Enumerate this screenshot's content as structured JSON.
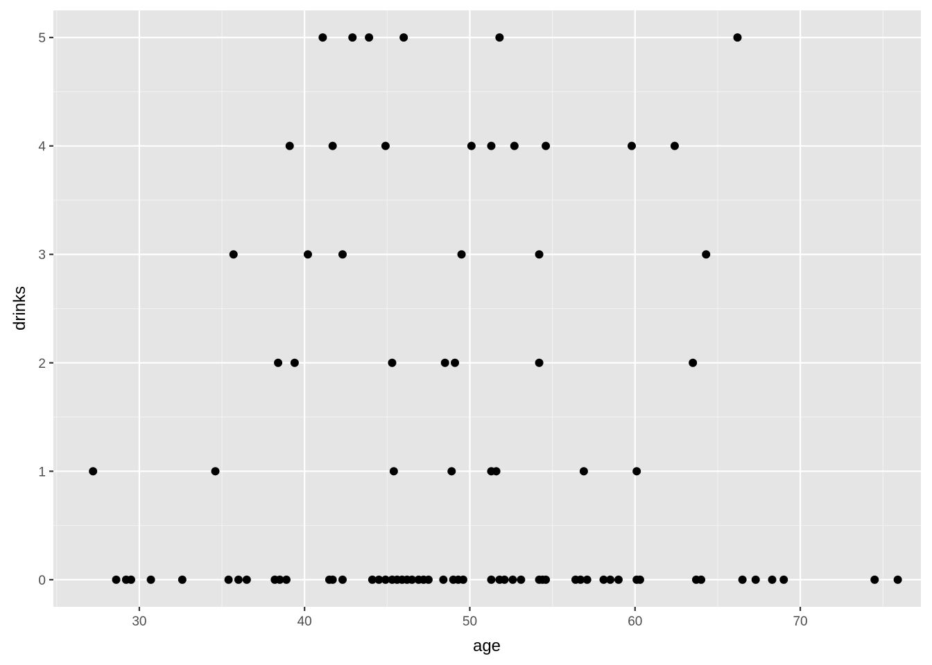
{
  "chart_data": {
    "type": "scatter",
    "title": "",
    "xlabel": "age",
    "ylabel": "drinks",
    "xlim": [
      24.8,
      77.3
    ],
    "ylim": [
      -0.25,
      5.25
    ],
    "x_ticks": [
      30,
      40,
      50,
      60,
      70
    ],
    "y_ticks": [
      0,
      1,
      2,
      3,
      4,
      5
    ],
    "grid": true,
    "legend": "none",
    "point_color": "#000000",
    "panel_background": "#e5e5e5",
    "points": [
      [
        27.2,
        1
      ],
      [
        34.6,
        1
      ],
      [
        45.4,
        1
      ],
      [
        48.9,
        1
      ],
      [
        51.3,
        1
      ],
      [
        51.6,
        1
      ],
      [
        56.9,
        1
      ],
      [
        60.1,
        1
      ],
      [
        38.4,
        2
      ],
      [
        39.4,
        2
      ],
      [
        45.3,
        2
      ],
      [
        48.5,
        2
      ],
      [
        49.1,
        2
      ],
      [
        54.2,
        2
      ],
      [
        63.5,
        2
      ],
      [
        35.7,
        3
      ],
      [
        40.2,
        3
      ],
      [
        42.3,
        3
      ],
      [
        49.5,
        3
      ],
      [
        54.2,
        3
      ],
      [
        64.3,
        3
      ],
      [
        39.1,
        4
      ],
      [
        41.7,
        4
      ],
      [
        44.9,
        4
      ],
      [
        50.1,
        4
      ],
      [
        51.3,
        4
      ],
      [
        52.7,
        4
      ],
      [
        54.6,
        4
      ],
      [
        59.8,
        4
      ],
      [
        62.4,
        4
      ],
      [
        41.1,
        5
      ],
      [
        42.9,
        5
      ],
      [
        43.9,
        5
      ],
      [
        46.0,
        5
      ],
      [
        51.8,
        5
      ],
      [
        66.2,
        5
      ],
      [
        28.6,
        0
      ],
      [
        29.2,
        0
      ],
      [
        29.5,
        0
      ],
      [
        30.7,
        0
      ],
      [
        32.6,
        0
      ],
      [
        35.4,
        0
      ],
      [
        36.0,
        0
      ],
      [
        36.5,
        0
      ],
      [
        38.2,
        0
      ],
      [
        38.5,
        0
      ],
      [
        38.9,
        0
      ],
      [
        41.5,
        0
      ],
      [
        41.7,
        0
      ],
      [
        42.3,
        0
      ],
      [
        44.1,
        0
      ],
      [
        44.5,
        0
      ],
      [
        44.9,
        0
      ],
      [
        45.3,
        0
      ],
      [
        45.6,
        0
      ],
      [
        45.9,
        0
      ],
      [
        46.2,
        0
      ],
      [
        46.5,
        0
      ],
      [
        46.9,
        0
      ],
      [
        47.2,
        0
      ],
      [
        47.5,
        0
      ],
      [
        48.4,
        0
      ],
      [
        49.0,
        0
      ],
      [
        49.3,
        0
      ],
      [
        49.6,
        0
      ],
      [
        51.3,
        0
      ],
      [
        51.8,
        0
      ],
      [
        52.1,
        0
      ],
      [
        52.6,
        0
      ],
      [
        53.1,
        0
      ],
      [
        54.2,
        0
      ],
      [
        54.4,
        0
      ],
      [
        54.6,
        0
      ],
      [
        56.4,
        0
      ],
      [
        56.7,
        0
      ],
      [
        57.1,
        0
      ],
      [
        58.1,
        0
      ],
      [
        58.5,
        0
      ],
      [
        59.0,
        0
      ],
      [
        60.1,
        0
      ],
      [
        60.3,
        0
      ],
      [
        63.7,
        0
      ],
      [
        64.0,
        0
      ],
      [
        66.5,
        0
      ],
      [
        67.3,
        0
      ],
      [
        68.3,
        0
      ],
      [
        69.0,
        0
      ],
      [
        74.5,
        0
      ],
      [
        75.9,
        0
      ]
    ]
  }
}
